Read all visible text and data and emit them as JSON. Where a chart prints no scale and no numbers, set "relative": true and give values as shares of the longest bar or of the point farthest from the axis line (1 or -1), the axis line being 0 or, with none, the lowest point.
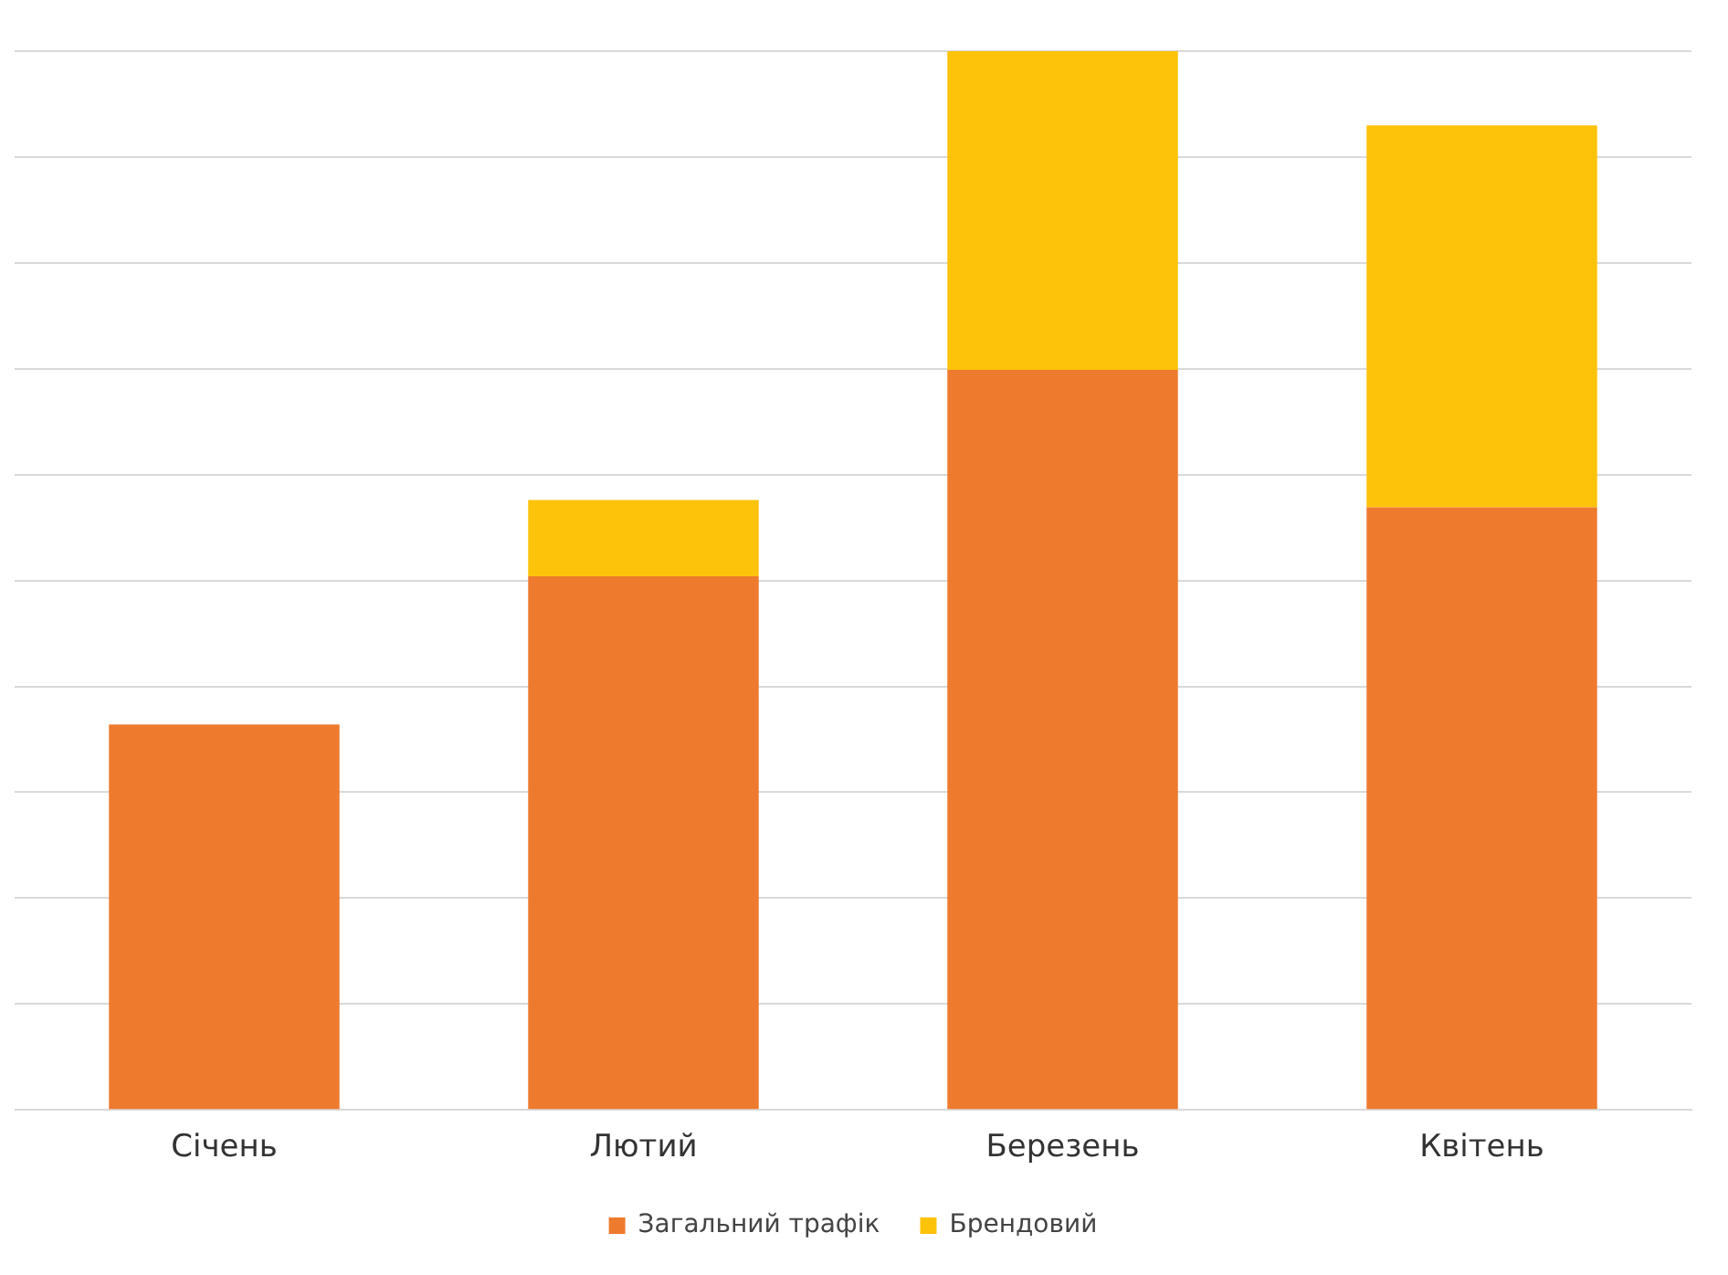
{
  "chart_data": {
    "type": "bar",
    "stacked": true,
    "relative": true,
    "grid": "y",
    "legend": "bottom",
    "categories": [
      "Січень",
      "Лютий",
      "Березень",
      "Квітень"
    ],
    "series": [
      {
        "name": "Загальний трафік",
        "color": "#ee7a2e",
        "values": [
          0.364,
          0.504,
          0.699,
          0.569
        ]
      },
      {
        "name": "Брендовий",
        "color": "#fdc20a",
        "values": [
          0,
          0.072,
          0.301,
          0.361
        ]
      }
    ]
  }
}
